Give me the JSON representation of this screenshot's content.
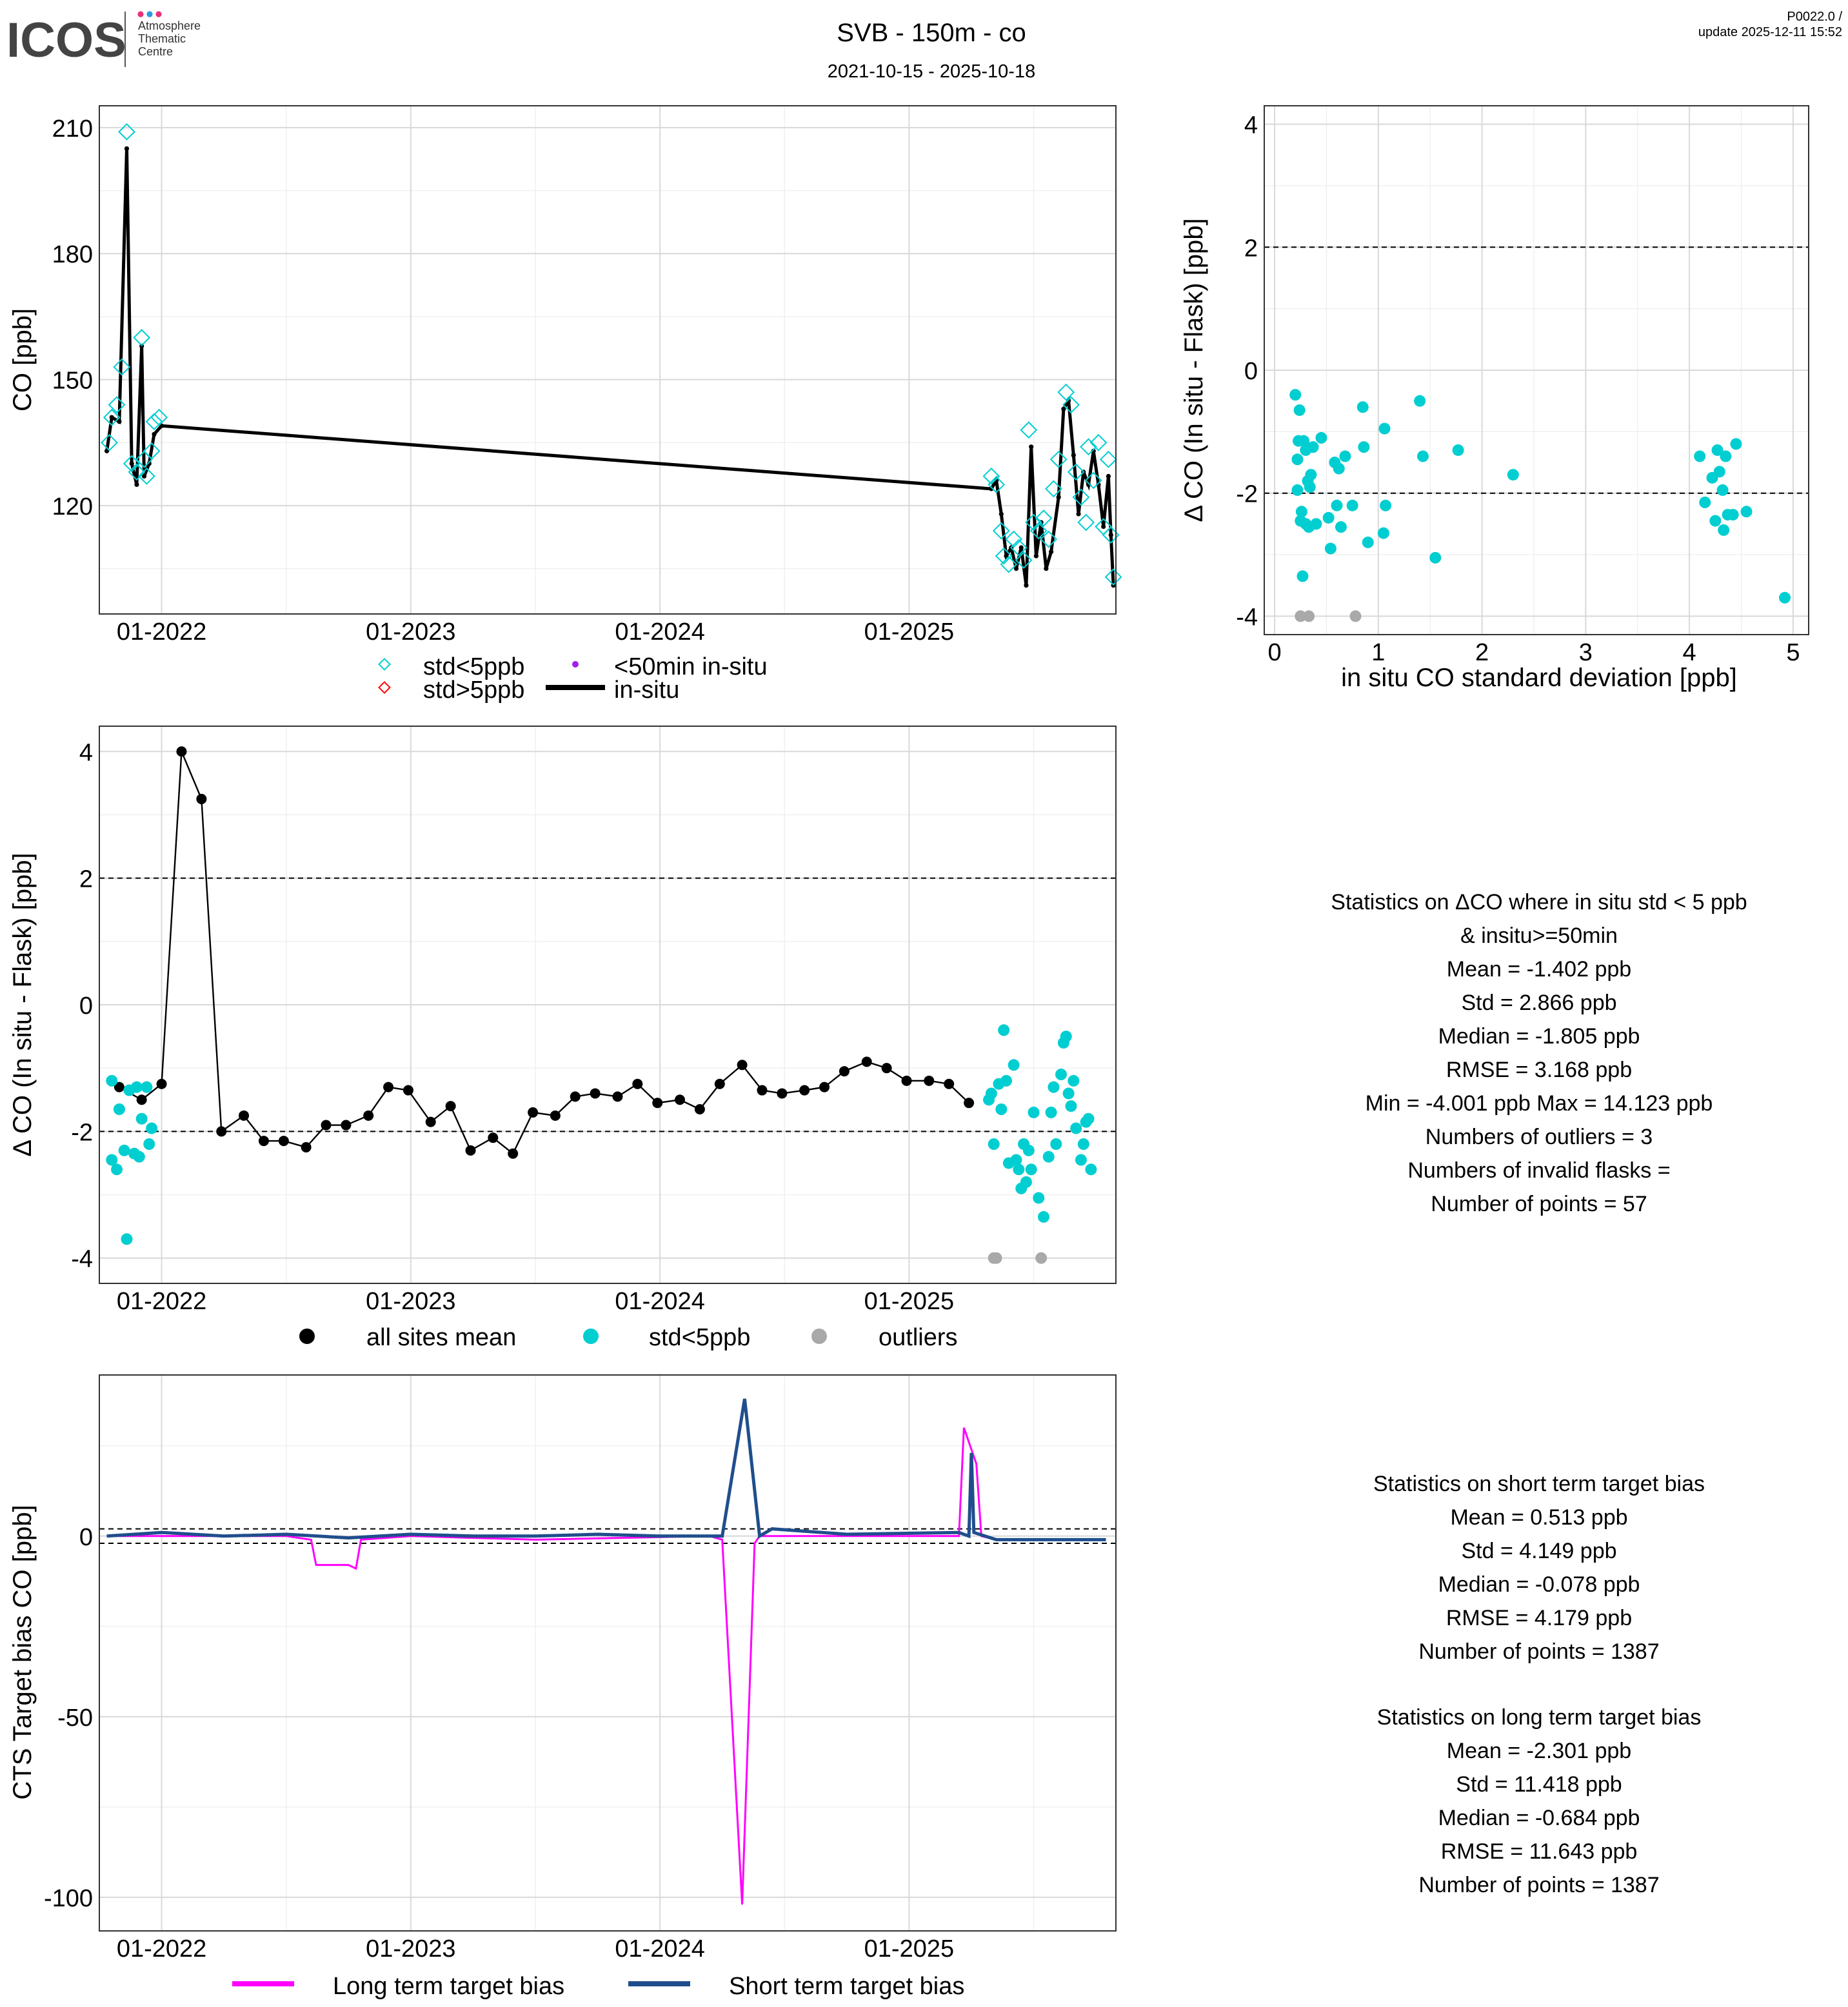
{
  "header": {
    "logo_text": "ICOS",
    "logo_sub": [
      "Atmosphere",
      "Thematic",
      "Centre"
    ],
    "title": "SVB - 150m - co",
    "date_range": "2021-10-15 - 2025-10-18",
    "version": "P0022.0 /",
    "update": "update  2025-12-11 15:52"
  },
  "colors": {
    "cyan": "#00CED1",
    "black": "#000000",
    "gray": "#A9A9A9",
    "magenta": "#FF00FF",
    "blue": "#1F4E8C",
    "red": "#FF0000",
    "purple": "#A020F0"
  },
  "stats_delta": [
    "Statistics on ΔCO where in situ std < 5 ppb",
    "& insitu>=50min",
    "Mean =  -1.402 ppb",
    "Std =  2.866 ppb",
    "Median =  -1.805 ppb",
    "RMSE =  3.168 ppb",
    "Min =  -4.001 ppb Max =  14.123 ppb",
    "Numbers of outliers =  3",
    "Numbers of invalid flasks =",
    "Number of points =  57"
  ],
  "stats_short": [
    "Statistics on short term target bias",
    "Mean =  0.513 ppb",
    "Std =  4.149 ppb",
    "Median =  -0.078 ppb",
    "RMSE =  4.179 ppb",
    "Number of points =  1387"
  ],
  "stats_long": [
    "Statistics on long term target bias",
    "Mean =  -2.301 ppb",
    "Std =  11.418 ppb",
    "Median =  -0.684 ppb",
    "RMSE =  11.643 ppb",
    "Number of points =  1387"
  ],
  "chart_data": [
    {
      "type": "line",
      "title": "CO time series",
      "ylabel": "CO [ppb]",
      "xlabel": "",
      "xticks": [
        "01-2022",
        "01-2023",
        "01-2024",
        "01-2025"
      ],
      "yticks": [
        "210",
        "180",
        "150",
        "120"
      ],
      "ylim": [
        94.2,
        215.2
      ],
      "xlim": [
        2021.75,
        2025.83
      ],
      "legend": [
        "std<5ppb",
        "std>5ppb",
        "<50min in-situ",
        "in-situ"
      ],
      "flask_std_lt5": [
        [
          2021.79,
          135
        ],
        [
          2021.8,
          141
        ],
        [
          2021.82,
          144
        ],
        [
          2021.84,
          153
        ],
        [
          2021.86,
          209
        ],
        [
          2021.88,
          130
        ],
        [
          2021.9,
          128
        ],
        [
          2021.92,
          160
        ],
        [
          2021.93,
          131
        ],
        [
          2021.94,
          127
        ],
        [
          2021.96,
          133
        ],
        [
          2021.97,
          140
        ],
        [
          2021.99,
          141
        ],
        [
          2025.33,
          127
        ],
        [
          2025.35,
          125
        ],
        [
          2025.37,
          114
        ],
        [
          2025.38,
          108
        ],
        [
          2025.4,
          106
        ],
        [
          2025.42,
          112
        ],
        [
          2025.44,
          110
        ],
        [
          2025.46,
          107
        ],
        [
          2025.48,
          138
        ],
        [
          2025.5,
          116
        ],
        [
          2025.52,
          114
        ],
        [
          2025.54,
          117
        ],
        [
          2025.56,
          112
        ],
        [
          2025.58,
          124
        ],
        [
          2025.6,
          131
        ],
        [
          2025.63,
          147
        ],
        [
          2025.65,
          144
        ],
        [
          2025.67,
          128
        ],
        [
          2025.69,
          122
        ],
        [
          2025.71,
          116
        ],
        [
          2025.72,
          134
        ],
        [
          2025.74,
          126
        ],
        [
          2025.76,
          135
        ],
        [
          2025.78,
          115
        ],
        [
          2025.8,
          131
        ],
        [
          2025.81,
          113
        ],
        [
          2025.82,
          103
        ]
      ],
      "in_situ": [
        [
          2021.78,
          133
        ],
        [
          2021.8,
          141
        ],
        [
          2021.83,
          140
        ],
        [
          2021.86,
          205
        ],
        [
          2021.88,
          130
        ],
        [
          2021.9,
          125
        ],
        [
          2021.92,
          158
        ],
        [
          2021.93,
          127
        ],
        [
          2021.95,
          130
        ],
        [
          2021.97,
          137
        ],
        [
          2022.0,
          139
        ],
        [
          2025.33,
          124
        ],
        [
          2025.35,
          126
        ],
        [
          2025.37,
          118
        ],
        [
          2025.39,
          108
        ],
        [
          2025.41,
          110
        ],
        [
          2025.43,
          105
        ],
        [
          2025.45,
          110
        ],
        [
          2025.47,
          101
        ],
        [
          2025.49,
          134
        ],
        [
          2025.51,
          108
        ],
        [
          2025.53,
          116
        ],
        [
          2025.55,
          105
        ],
        [
          2025.57,
          109
        ],
        [
          2025.6,
          122
        ],
        [
          2025.62,
          143
        ],
        [
          2025.64,
          145
        ],
        [
          2025.66,
          132
        ],
        [
          2025.68,
          118
        ],
        [
          2025.7,
          128
        ],
        [
          2025.72,
          125
        ],
        [
          2025.74,
          133
        ],
        [
          2025.76,
          125
        ],
        [
          2025.78,
          115
        ],
        [
          2025.8,
          127
        ],
        [
          2025.81,
          113
        ],
        [
          2025.82,
          101
        ]
      ]
    },
    {
      "type": "scatter",
      "xlabel": "in situ CO standard deviation [ppb]",
      "ylabel": "Δ CO (In situ - Flask) [ppb]",
      "xticks": [
        "0",
        "1",
        "2",
        "3",
        "4",
        "5"
      ],
      "yticks": [
        "4",
        "2",
        "0",
        "-2",
        "-4"
      ],
      "xlim": [
        -0.1,
        5.15
      ],
      "ylim": [
        -4.3,
        4.3
      ],
      "hlines": [
        2,
        -2
      ],
      "std_lt5": [
        [
          0.2,
          -0.4
        ],
        [
          0.22,
          -1.45
        ],
        [
          0.22,
          -1.95
        ],
        [
          0.23,
          -1.15
        ],
        [
          0.24,
          -0.65
        ],
        [
          0.25,
          -2.45
        ],
        [
          0.26,
          -2.3
        ],
        [
          0.27,
          -3.35
        ],
        [
          0.28,
          -1.15
        ],
        [
          0.3,
          -2.5
        ],
        [
          0.3,
          -1.3
        ],
        [
          0.32,
          -1.8
        ],
        [
          0.33,
          -2.55
        ],
        [
          0.34,
          -1.9
        ],
        [
          0.35,
          -1.7
        ],
        [
          0.37,
          -1.25
        ],
        [
          0.4,
          -2.5
        ],
        [
          0.45,
          -1.1
        ],
        [
          0.52,
          -2.4
        ],
        [
          0.54,
          -2.9
        ],
        [
          0.58,
          -1.5
        ],
        [
          0.6,
          -2.2
        ],
        [
          0.62,
          -1.6
        ],
        [
          0.64,
          -2.55
        ],
        [
          0.68,
          -1.4
        ],
        [
          0.75,
          -2.2
        ],
        [
          0.85,
          -0.6
        ],
        [
          0.86,
          -1.25
        ],
        [
          0.9,
          -2.8
        ],
        [
          1.05,
          -2.65
        ],
        [
          1.06,
          -0.95
        ],
        [
          1.07,
          -2.2
        ],
        [
          1.4,
          -0.5
        ],
        [
          1.43,
          -1.4
        ],
        [
          1.55,
          -3.05
        ],
        [
          1.77,
          -1.3
        ],
        [
          2.3,
          -1.7
        ],
        [
          4.1,
          -1.4
        ],
        [
          4.15,
          -2.15
        ],
        [
          4.22,
          -1.75
        ],
        [
          4.25,
          -2.45
        ],
        [
          4.27,
          -1.3
        ],
        [
          4.29,
          -1.65
        ],
        [
          4.32,
          -1.95
        ],
        [
          4.33,
          -2.6
        ],
        [
          4.35,
          -1.4
        ],
        [
          4.37,
          -2.35
        ],
        [
          4.42,
          -2.35
        ],
        [
          4.45,
          -1.2
        ],
        [
          4.55,
          -2.3
        ],
        [
          4.92,
          -3.7
        ]
      ],
      "outliers": [
        [
          0.25,
          -4
        ],
        [
          0.33,
          -4
        ],
        [
          0.78,
          -4
        ]
      ]
    },
    {
      "type": "scatter",
      "ylabel": "Δ CO (In situ - Flask) [ppb]",
      "xticks": [
        "01-2022",
        "01-2023",
        "01-2024",
        "01-2025"
      ],
      "yticks": [
        "4",
        "2",
        "0",
        "-2",
        "-4"
      ],
      "xlim": [
        2021.75,
        2025.83
      ],
      "ylim": [
        -4.4,
        4.4
      ],
      "hlines": [
        2,
        -2
      ],
      "legend": [
        "all sites mean",
        "std<5ppb",
        "outliers"
      ],
      "all_sites_mean": [
        [
          2021.83,
          -1.3
        ],
        [
          2021.92,
          -1.5
        ],
        [
          2022.0,
          -1.25
        ],
        [
          2022.08,
          4.0
        ],
        [
          2022.16,
          3.25
        ],
        [
          2022.24,
          -2.0
        ],
        [
          2022.33,
          -1.75
        ],
        [
          2022.41,
          -2.15
        ],
        [
          2022.49,
          -2.15
        ],
        [
          2022.58,
          -2.25
        ],
        [
          2022.66,
          -1.9
        ],
        [
          2022.74,
          -1.9
        ],
        [
          2022.83,
          -1.75
        ],
        [
          2022.91,
          -1.3
        ],
        [
          2022.99,
          -1.35
        ],
        [
          2023.08,
          -1.85
        ],
        [
          2023.16,
          -1.6
        ],
        [
          2023.24,
          -2.3
        ],
        [
          2023.33,
          -2.1
        ],
        [
          2023.41,
          -2.35
        ],
        [
          2023.49,
          -1.7
        ],
        [
          2023.58,
          -1.75
        ],
        [
          2023.66,
          -1.45
        ],
        [
          2023.74,
          -1.4
        ],
        [
          2023.83,
          -1.45
        ],
        [
          2023.91,
          -1.25
        ],
        [
          2023.99,
          -1.55
        ],
        [
          2024.08,
          -1.5
        ],
        [
          2024.16,
          -1.65
        ],
        [
          2024.24,
          -1.25
        ],
        [
          2024.33,
          -0.95
        ],
        [
          2024.41,
          -1.35
        ],
        [
          2024.49,
          -1.4
        ],
        [
          2024.58,
          -1.35
        ],
        [
          2024.66,
          -1.3
        ],
        [
          2024.74,
          -1.05
        ],
        [
          2024.83,
          -0.9
        ],
        [
          2024.91,
          -1.0
        ],
        [
          2024.99,
          -1.2
        ],
        [
          2025.08,
          -1.2
        ],
        [
          2025.16,
          -1.25
        ],
        [
          2025.24,
          -1.55
        ]
      ],
      "std_lt5": [
        [
          2021.8,
          -1.2
        ],
        [
          2021.8,
          -2.45
        ],
        [
          2021.82,
          -2.6
        ],
        [
          2021.83,
          -1.65
        ],
        [
          2021.85,
          -2.3
        ],
        [
          2021.86,
          -3.7
        ],
        [
          2021.87,
          -1.35
        ],
        [
          2021.89,
          -2.35
        ],
        [
          2021.9,
          -1.3
        ],
        [
          2021.91,
          -2.4
        ],
        [
          2021.92,
          -1.8
        ],
        [
          2021.94,
          -1.3
        ],
        [
          2021.95,
          -2.2
        ],
        [
          2021.96,
          -1.95
        ],
        [
          2025.32,
          -1.5
        ],
        [
          2025.33,
          -1.4
        ],
        [
          2025.34,
          -2.2
        ],
        [
          2025.36,
          -1.25
        ],
        [
          2025.37,
          -1.65
        ],
        [
          2025.38,
          -0.4
        ],
        [
          2025.39,
          -1.2
        ],
        [
          2025.4,
          -2.5
        ],
        [
          2025.42,
          -0.95
        ],
        [
          2025.43,
          -2.45
        ],
        [
          2025.44,
          -2.6
        ],
        [
          2025.45,
          -2.9
        ],
        [
          2025.46,
          -2.2
        ],
        [
          2025.47,
          -2.8
        ],
        [
          2025.48,
          -2.3
        ],
        [
          2025.49,
          -2.6
        ],
        [
          2025.5,
          -1.7
        ],
        [
          2025.52,
          -3.05
        ],
        [
          2025.54,
          -3.35
        ],
        [
          2025.56,
          -2.4
        ],
        [
          2025.57,
          -1.7
        ],
        [
          2025.58,
          -1.3
        ],
        [
          2025.59,
          -2.2
        ],
        [
          2025.61,
          -1.1
        ],
        [
          2025.62,
          -0.6
        ],
        [
          2025.63,
          -0.5
        ],
        [
          2025.64,
          -1.4
        ],
        [
          2025.65,
          -1.6
        ],
        [
          2025.66,
          -1.2
        ],
        [
          2025.67,
          -1.95
        ],
        [
          2025.69,
          -2.45
        ],
        [
          2025.7,
          -2.2
        ],
        [
          2025.71,
          -1.85
        ],
        [
          2025.72,
          -1.8
        ],
        [
          2025.73,
          -2.6
        ]
      ],
      "outliers": [
        [
          2025.34,
          -4
        ],
        [
          2025.35,
          -4
        ],
        [
          2025.53,
          -4
        ]
      ]
    },
    {
      "type": "line",
      "ylabel": "CTS Target bias CO [ppb]",
      "xticks": [
        "01-2022",
        "01-2023",
        "01-2024",
        "01-2025"
      ],
      "yticks": [
        "0",
        "-50",
        "-100"
      ],
      "xlim": [
        2021.75,
        2025.83
      ],
      "ylim": [
        -109.3,
        44.6
      ],
      "hlines": [
        2,
        -2
      ],
      "legend": [
        "Long term target bias",
        "Short term target bias"
      ],
      "long_term": [
        [
          2021.78,
          0
        ],
        [
          2022.5,
          0
        ],
        [
          2022.55,
          -0.5
        ],
        [
          2022.6,
          -1
        ],
        [
          2022.62,
          -8
        ],
        [
          2022.75,
          -8
        ],
        [
          2022.78,
          -9
        ],
        [
          2022.8,
          -1
        ],
        [
          2023.0,
          0
        ],
        [
          2023.5,
          -1
        ],
        [
          2024.2,
          0
        ],
        [
          2024.25,
          -1
        ],
        [
          2024.33,
          -102
        ],
        [
          2024.38,
          -2
        ],
        [
          2024.4,
          0
        ],
        [
          2025.15,
          0
        ],
        [
          2025.2,
          0
        ],
        [
          2025.22,
          30
        ],
        [
          2025.27,
          20
        ],
        [
          2025.29,
          0
        ],
        [
          2025.35,
          -1
        ],
        [
          2025.79,
          -1
        ]
      ],
      "short_term": [
        [
          2021.78,
          0
        ],
        [
          2022.0,
          1
        ],
        [
          2022.25,
          0
        ],
        [
          2022.5,
          0.5
        ],
        [
          2022.75,
          -0.5
        ],
        [
          2023.0,
          0.5
        ],
        [
          2023.25,
          0
        ],
        [
          2023.5,
          0
        ],
        [
          2023.75,
          0.5
        ],
        [
          2024.0,
          0
        ],
        [
          2024.25,
          0
        ],
        [
          2024.34,
          38
        ],
        [
          2024.4,
          0
        ],
        [
          2024.45,
          2
        ],
        [
          2024.75,
          0.5
        ],
        [
          2025.2,
          1
        ],
        [
          2025.24,
          0
        ],
        [
          2025.25,
          23
        ],
        [
          2025.26,
          1
        ],
        [
          2025.35,
          -1
        ],
        [
          2025.79,
          -1
        ]
      ]
    }
  ]
}
